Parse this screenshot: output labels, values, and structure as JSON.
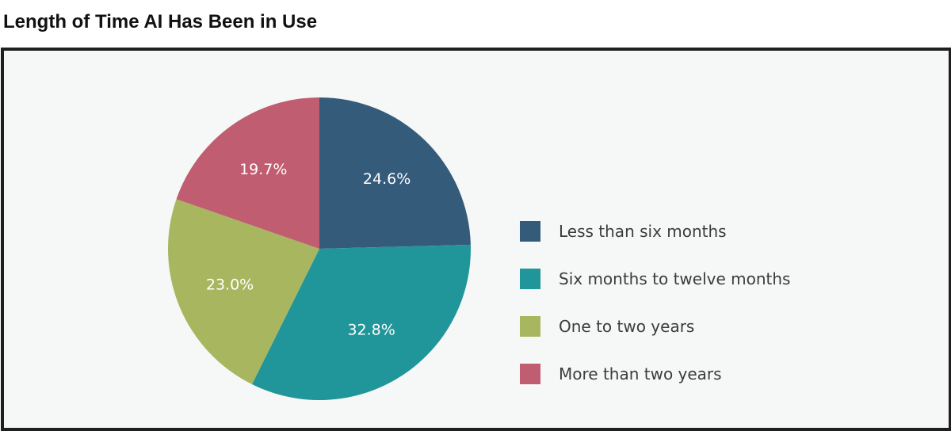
{
  "header": {
    "title": "Length of Time AI Has Been in Use"
  },
  "chart_data": {
    "type": "pie",
    "title": "Length of Time AI Has Been in Use",
    "categories": [
      "Less than six months",
      "Six months to twelve months",
      "One to two years",
      "More than two years"
    ],
    "values": [
      24.6,
      32.8,
      23.0,
      19.7
    ],
    "value_labels": [
      "24.6%",
      "32.8%",
      "23.0%",
      "19.7%"
    ],
    "colors": [
      "#355b7b",
      "#21969a",
      "#a8b660",
      "#c05d71"
    ],
    "start": "12 o'clock",
    "direction": "clockwise",
    "legend_position": "right"
  }
}
